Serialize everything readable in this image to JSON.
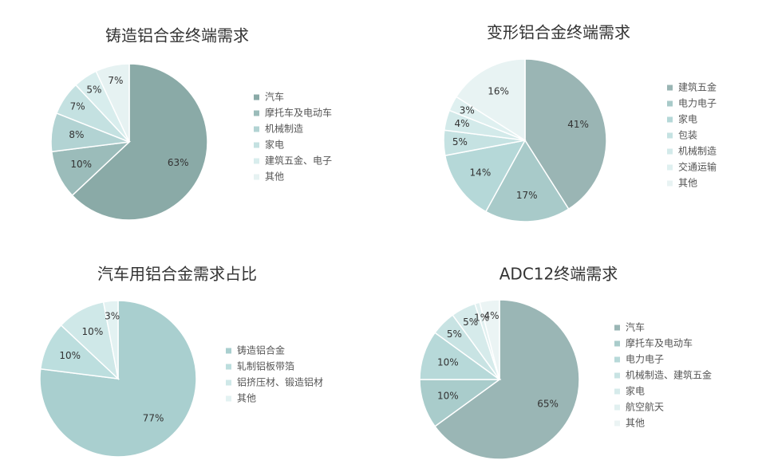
{
  "chart_data": [
    {
      "type": "pie",
      "title": "铸造铝合金终端需求",
      "legend": "right",
      "categories": [
        "汽车",
        "摩托车及电动车",
        "机械制造",
        "家电",
        "建筑五金、电子",
        "其他"
      ],
      "values": [
        63,
        10,
        8,
        7,
        5,
        7
      ],
      "value_labels": [
        "63%",
        "10%",
        "8%",
        "7%",
        "5%",
        "7%"
      ],
      "colors": [
        "#8aaaa7",
        "#9bbcba",
        "#b2d3d3",
        "#c4e1e1",
        "#d8eded",
        "#e6f2f2"
      ]
    },
    {
      "type": "pie",
      "title": "变形铝合金终端需求",
      "legend": "right",
      "categories": [
        "建筑五金",
        "电力电子",
        "家电",
        "包装",
        "机械制造",
        "交通运输",
        "其他"
      ],
      "values": [
        41,
        17,
        14,
        5,
        4,
        3,
        16
      ],
      "value_labels": [
        "41%",
        "17%",
        "14%",
        "5%",
        "4%",
        "3%",
        "16%"
      ],
      "colors": [
        "#9ab5b4",
        "#a8cac9",
        "#b5d8d8",
        "#c5e2e2",
        "#d3eaea",
        "#dff0f0",
        "#e8f3f3"
      ]
    },
    {
      "type": "pie",
      "title": "汽车用铝合金需求占比",
      "legend": "right",
      "categories": [
        "铸造铝合金",
        "轧制铝板带箔",
        "铝挤压材、锻造铝材",
        "其他"
      ],
      "values": [
        77,
        10,
        10,
        3
      ],
      "value_labels": [
        "77%",
        "10%",
        "10%",
        "3%"
      ],
      "colors": [
        "#a9cfcf",
        "#bcdede",
        "#cfe8e8",
        "#e3f2f2"
      ]
    },
    {
      "type": "pie",
      "title": "ADC12终端需求",
      "legend": "right",
      "categories": [
        "汽车",
        "摩托车及电动车",
        "电力电子",
        "机械制造、建筑五金",
        "家电",
        "航空航天",
        "其他"
      ],
      "values": [
        65,
        10,
        10,
        5,
        5,
        1,
        4
      ],
      "value_labels": [
        "65%",
        "10%",
        "10%",
        "5%",
        "5%",
        "1%",
        "4%"
      ],
      "colors": [
        "#9ab6b5",
        "#a9cccb",
        "#b7d9d9",
        "#c8e3e3",
        "#d6ebeb",
        "#e1f0f0",
        "#ebf4f4"
      ]
    }
  ]
}
